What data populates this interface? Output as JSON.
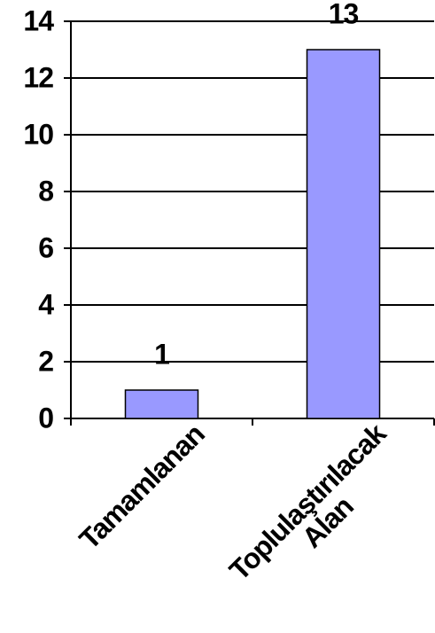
{
  "chart_data": {
    "type": "bar",
    "categories": [
      "Tamamlanan",
      "Toplulaştırılacak Alan"
    ],
    "values": [
      1,
      13
    ],
    "color": "#9999ff",
    "ylim": [
      0,
      14
    ],
    "yticks": [
      0,
      2,
      4,
      6,
      8,
      10,
      12,
      14
    ],
    "grid": true
  }
}
